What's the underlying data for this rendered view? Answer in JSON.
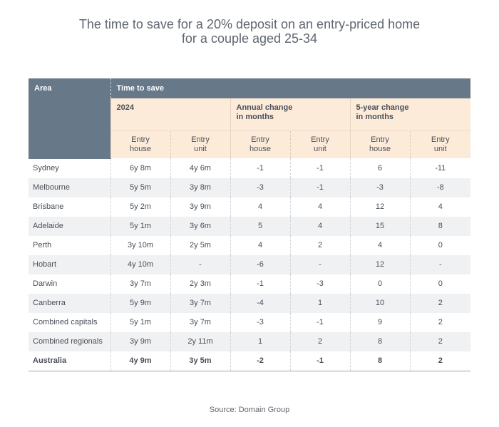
{
  "title": {
    "line1": "The time to save for a 20% deposit on an entry-priced home",
    "line2": "for a couple aged 25-34"
  },
  "headers": {
    "area": "Area",
    "time_to_save": "Time to save",
    "group_2024": "2024",
    "group_annual_line1": "Annual change",
    "group_annual_line2": "in months",
    "group_5yr_line1": "5-year change",
    "group_5yr_line2": "in months",
    "entry_house_line1": "Entry",
    "entry_house_line2": "house",
    "entry_unit_line1": "Entry",
    "entry_unit_line2": "unit"
  },
  "rows": [
    {
      "area": "Sydney",
      "house_2024": "6y 8m",
      "unit_2024": "4y 6m",
      "house_annual": "-1",
      "unit_annual": "-1",
      "house_5yr": "6",
      "unit_5yr": "-11"
    },
    {
      "area": "Melbourne",
      "house_2024": "5y 5m",
      "unit_2024": "3y 8m",
      "house_annual": "-3",
      "unit_annual": "-1",
      "house_5yr": "-3",
      "unit_5yr": "-8"
    },
    {
      "area": "Brisbane",
      "house_2024": "5y 2m",
      "unit_2024": "3y 9m",
      "house_annual": "4",
      "unit_annual": "4",
      "house_5yr": "12",
      "unit_5yr": "4"
    },
    {
      "area": "Adelaide",
      "house_2024": "5y 1m",
      "unit_2024": "3y 6m",
      "house_annual": "5",
      "unit_annual": "4",
      "house_5yr": "15",
      "unit_5yr": "8"
    },
    {
      "area": "Perth",
      "house_2024": "3y 10m",
      "unit_2024": "2y 5m",
      "house_annual": "4",
      "unit_annual": "2",
      "house_5yr": "4",
      "unit_5yr": "0"
    },
    {
      "area": "Hobart",
      "house_2024": "4y 10m",
      "unit_2024": "-",
      "house_annual": "-6",
      "unit_annual": "-",
      "house_5yr": "12",
      "unit_5yr": "-"
    },
    {
      "area": "Darwin",
      "house_2024": "3y 7m",
      "unit_2024": "2y 3m",
      "house_annual": "-1",
      "unit_annual": "-3",
      "house_5yr": "0",
      "unit_5yr": "0"
    },
    {
      "area": "Canberra",
      "house_2024": "5y 9m",
      "unit_2024": "3y 7m",
      "house_annual": "-4",
      "unit_annual": "1",
      "house_5yr": "10",
      "unit_5yr": "2"
    },
    {
      "area": "Combined capitals",
      "house_2024": "5y 1m",
      "unit_2024": "3y 7m",
      "house_annual": "-3",
      "unit_annual": "-1",
      "house_5yr": "9",
      "unit_5yr": "2"
    },
    {
      "area": "Combined regionals",
      "house_2024": "3y 9m",
      "unit_2024": "2y 11m",
      "house_annual": "1",
      "unit_annual": "2",
      "house_5yr": "8",
      "unit_5yr": "2"
    },
    {
      "area": "Australia",
      "house_2024": "4y 9m",
      "unit_2024": "3y 5m",
      "house_annual": "-2",
      "unit_annual": "-1",
      "house_5yr": "8",
      "unit_5yr": "2"
    }
  ],
  "source": "Source: Domain Group",
  "colors": {
    "header_dark": "#677889",
    "header_light": "#fdebd9",
    "row_alt": "#f0f1f2"
  }
}
